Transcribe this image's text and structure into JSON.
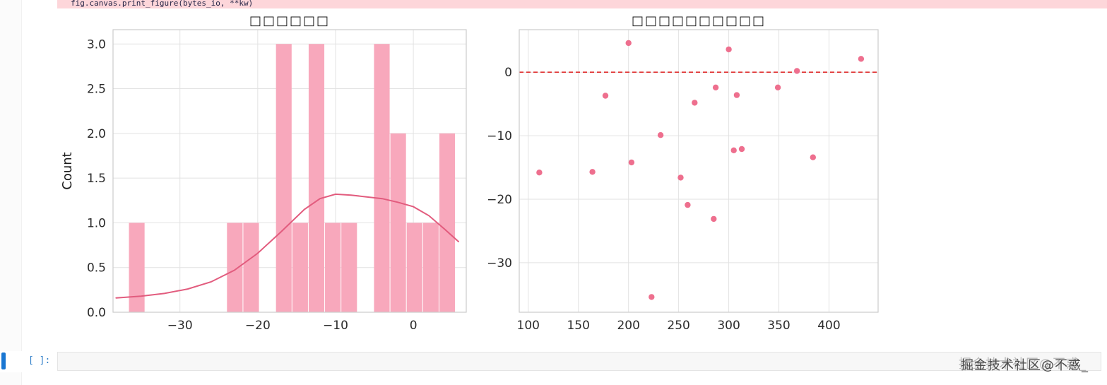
{
  "notebook": {
    "traceback_line": "fig.canvas.print_figure(bytes_io, **kw)",
    "empty_cell_prompt": "[ ]:",
    "watermark": "掘金技术社区@不惑_"
  },
  "colors": {
    "traceback-bg": "#fdd6da",
    "cell-indicator": "#1976d2",
    "prompt-blue": "#307fc9",
    "watermark-color": "#4b4b4b"
  },
  "chart_data": [
    {
      "type": "histogram_kde",
      "title": "□□□□□□",
      "ylabel": "Count",
      "xlim": [
        -38.6,
        6.8
      ],
      "ylim": [
        0,
        3.16
      ],
      "xticks": [
        -30,
        -20,
        -10,
        0
      ],
      "xticklabels": [
        "−30",
        "−20",
        "−10",
        "0"
      ],
      "yticks": [
        0,
        0.5,
        1,
        1.5,
        2,
        2.5,
        3
      ],
      "yticklabels": [
        "0.0",
        "0.5",
        "1.0",
        "1.5",
        "2.0",
        "2.5",
        "3.0"
      ],
      "bin_width": 2.1,
      "bars": [
        [
          -36.6,
          1
        ],
        [
          -24,
          1
        ],
        [
          -21.9,
          1
        ],
        [
          -17.7,
          3
        ],
        [
          -15.6,
          1
        ],
        [
          -13.5,
          3
        ],
        [
          -11.4,
          1
        ],
        [
          -9.3,
          1
        ],
        [
          -5.1,
          3
        ],
        [
          -3,
          2
        ],
        [
          -0.9,
          1
        ],
        [
          1.2,
          1
        ],
        [
          3.3,
          2
        ]
      ],
      "kde": [
        [
          -38.2,
          0.16
        ],
        [
          -35,
          0.18
        ],
        [
          -32,
          0.21
        ],
        [
          -29,
          0.26
        ],
        [
          -26,
          0.34
        ],
        [
          -23,
          0.47
        ],
        [
          -20,
          0.66
        ],
        [
          -17,
          0.9
        ],
        [
          -14,
          1.15
        ],
        [
          -12,
          1.27
        ],
        [
          -10,
          1.32
        ],
        [
          -8,
          1.31
        ],
        [
          -6,
          1.29
        ],
        [
          -4,
          1.27
        ],
        [
          -2,
          1.23
        ],
        [
          0,
          1.18
        ],
        [
          2,
          1.08
        ],
        [
          4,
          0.93
        ],
        [
          5.8,
          0.79
        ]
      ],
      "grid": true,
      "bar_color": "#f8a8bc",
      "line_color": "#e25c7e",
      "grid_color": "#e2e2e2",
      "spine_color": "#cccccc",
      "tick_color": "#2b2b2b"
    },
    {
      "type": "scatter",
      "title": "□□□□□□□□□□",
      "xlim": [
        91,
        449
      ],
      "ylim": [
        -37.8,
        6.7
      ],
      "xticks": [
        100,
        150,
        200,
        250,
        300,
        350,
        400
      ],
      "xticklabels": [
        "100",
        "150",
        "200",
        "250",
        "300",
        "350",
        "400"
      ],
      "yticks": [
        0,
        -10,
        -20,
        -30
      ],
      "yticklabels": [
        "0",
        "−10",
        "−20",
        "−30"
      ],
      "refline_y": 0,
      "refline_color": "#e03131",
      "grid": true,
      "point_color": "#ee6f8e",
      "grid_color": "#e2e2e2",
      "spine_color": "#cccccc",
      "tick_color": "#2b2b2b",
      "points": [
        [
          111,
          -15.8
        ],
        [
          164,
          -15.7
        ],
        [
          177,
          -3.7
        ],
        [
          200,
          4.6
        ],
        [
          203,
          -14.2
        ],
        [
          223,
          -35.4
        ],
        [
          232,
          -9.9
        ],
        [
          252,
          -16.6
        ],
        [
          259,
          -20.9
        ],
        [
          266,
          -4.8
        ],
        [
          285,
          -23.1
        ],
        [
          287,
          -2.4
        ],
        [
          300,
          3.6
        ],
        [
          305,
          -12.3
        ],
        [
          308,
          -3.6
        ],
        [
          313,
          -12.1
        ],
        [
          349,
          -2.4
        ],
        [
          368,
          0.2
        ],
        [
          384,
          -13.4
        ],
        [
          432,
          2.1
        ]
      ]
    }
  ]
}
